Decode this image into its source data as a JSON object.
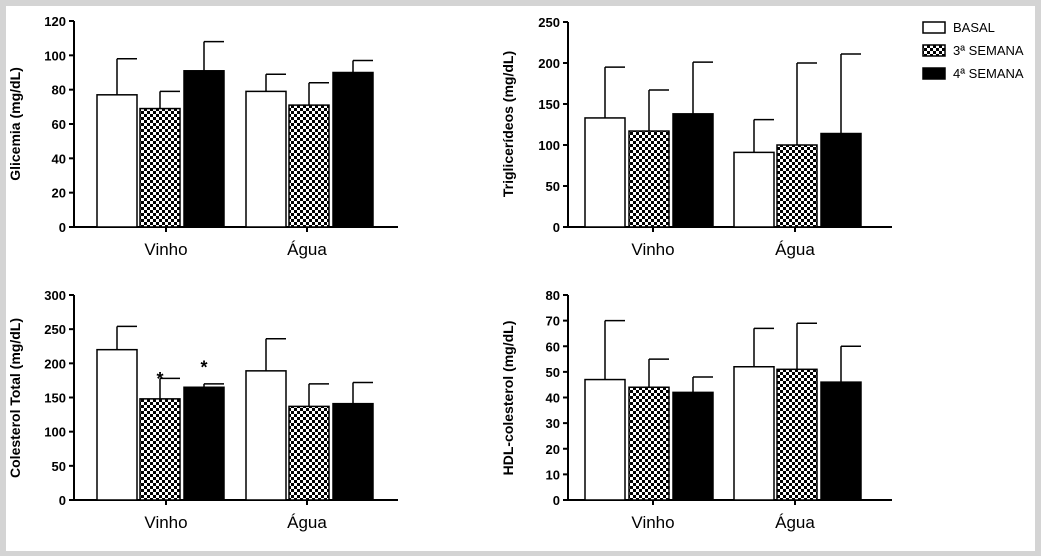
{
  "legend": [
    {
      "label": "BASAL",
      "pattern": "white"
    },
    {
      "label": "3ª SEMANA",
      "pattern": "checker"
    },
    {
      "label": "4ª SEMANA",
      "pattern": "black"
    }
  ],
  "chart_data": [
    {
      "type": "bar",
      "ylabel": "Glicemia (mg/dL)",
      "categories": [
        "Vinho",
        "Água"
      ],
      "ylim": [
        0,
        120
      ],
      "yticks": [
        0,
        20,
        40,
        60,
        80,
        100,
        120
      ],
      "series": [
        {
          "name": "BASAL",
          "values": [
            77,
            79
          ],
          "errors": [
            21,
            10
          ]
        },
        {
          "name": "3ª SEMANA",
          "values": [
            69,
            71
          ],
          "errors": [
            10,
            13
          ]
        },
        {
          "name": "4ª SEMANA",
          "values": [
            91,
            90
          ],
          "errors": [
            17,
            7
          ]
        }
      ],
      "annotations": []
    },
    {
      "type": "bar",
      "ylabel": "Triglicerídeos (mg/dL)",
      "categories": [
        "Vinho",
        "Água"
      ],
      "ylim": [
        0,
        250
      ],
      "yticks": [
        0,
        50,
        100,
        150,
        200,
        250
      ],
      "series": [
        {
          "name": "BASAL",
          "values": [
            133,
            91
          ],
          "errors": [
            62,
            40
          ]
        },
        {
          "name": "3ª SEMANA",
          "values": [
            117,
            100
          ],
          "errors": [
            50,
            100
          ]
        },
        {
          "name": "4ª SEMANA",
          "values": [
            138,
            114
          ],
          "errors": [
            63,
            97
          ]
        }
      ],
      "annotations": []
    },
    {
      "type": "bar",
      "ylabel": "Colesterol Total (mg/dL)",
      "categories": [
        "Vinho",
        "Água"
      ],
      "ylim": [
        0,
        300
      ],
      "yticks": [
        0,
        50,
        100,
        150,
        200,
        250,
        300
      ],
      "series": [
        {
          "name": "BASAL",
          "values": [
            220,
            189
          ],
          "errors": [
            34,
            47
          ]
        },
        {
          "name": "3ª SEMANA",
          "values": [
            148,
            137
          ],
          "errors": [
            30,
            33
          ]
        },
        {
          "name": "4ª SEMANA",
          "values": [
            165,
            141
          ],
          "errors": [
            5,
            31
          ]
        }
      ],
      "annotations": [
        {
          "text": "*",
          "category": 0,
          "series": 1
        },
        {
          "text": "*",
          "category": 0,
          "series": 2
        }
      ]
    },
    {
      "type": "bar",
      "ylabel": "HDL-colesterol (mg/dL)",
      "categories": [
        "Vinho",
        "Água"
      ],
      "ylim": [
        0,
        80
      ],
      "yticks": [
        0,
        10,
        20,
        30,
        40,
        50,
        60,
        70,
        80
      ],
      "series": [
        {
          "name": "BASAL",
          "values": [
            47,
            52
          ],
          "errors": [
            23,
            15
          ]
        },
        {
          "name": "3ª SEMANA",
          "values": [
            44,
            51
          ],
          "errors": [
            11,
            18
          ]
        },
        {
          "name": "4ª SEMANA",
          "values": [
            42,
            46
          ],
          "errors": [
            6,
            14
          ]
        }
      ],
      "annotations": []
    }
  ]
}
